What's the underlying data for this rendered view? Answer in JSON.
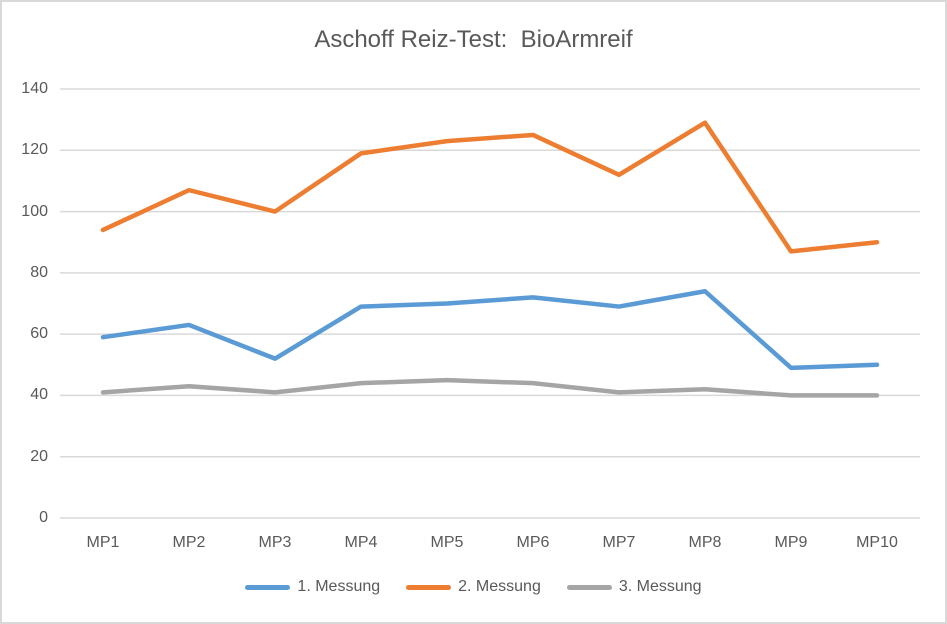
{
  "chart_data": {
    "type": "line",
    "title": "Aschoff Reiz-Test:  BioArmreif",
    "categories": [
      "MP1",
      "MP2",
      "MP3",
      "MP4",
      "MP5",
      "MP6",
      "MP7",
      "MP8",
      "MP9",
      "MP10"
    ],
    "series": [
      {
        "name": "1. Messung",
        "color": "#5B9BD5",
        "values": [
          59,
          63,
          52,
          69,
          70,
          72,
          69,
          74,
          49,
          50
        ]
      },
      {
        "name": "2. Messung",
        "color": "#ED7D31",
        "values": [
          94,
          107,
          100,
          119,
          123,
          125,
          112,
          129,
          87,
          90
        ]
      },
      {
        "name": "3. Messung",
        "color": "#A5A5A5",
        "values": [
          41,
          43,
          41,
          44,
          45,
          44,
          41,
          42,
          40,
          40
        ]
      }
    ],
    "xlabel": "",
    "ylabel": "",
    "ylim": [
      0,
      140
    ],
    "yticks": [
      0,
      20,
      40,
      60,
      80,
      100,
      120,
      140
    ],
    "grid": true,
    "legend_position": "bottom",
    "text_color": "#595959",
    "gridline_color": "#D9D9D9",
    "border_color": "#D9D9D9",
    "background_color": "#FFFFFF"
  }
}
